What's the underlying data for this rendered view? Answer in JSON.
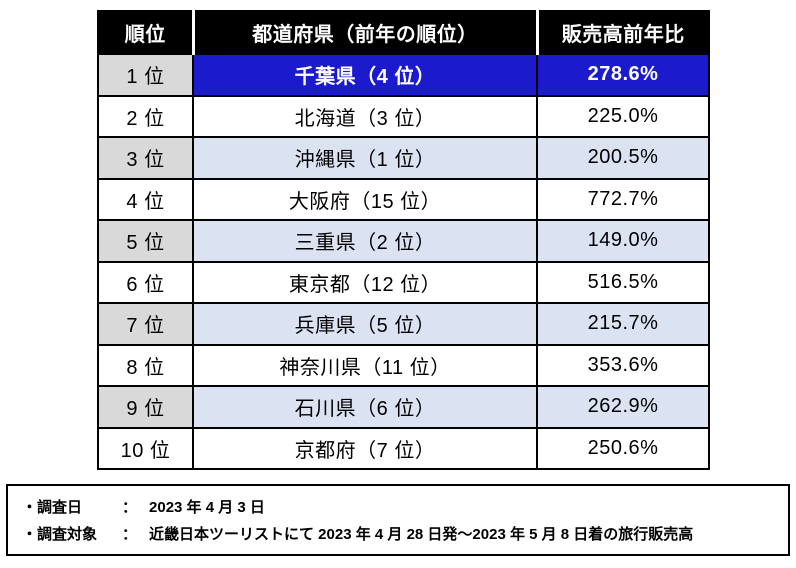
{
  "chart_data": {
    "type": "table",
    "columns": [
      "順位",
      "都道府県（前年の順位）",
      "販売高前年比"
    ],
    "rows": [
      [
        "1 位",
        "千葉県（4 位）",
        "278.6%"
      ],
      [
        "2 位",
        "北海道（3 位）",
        "225.0%"
      ],
      [
        "3 位",
        "沖縄県（1 位）",
        "200.5%"
      ],
      [
        "4 位",
        "大阪府（15 位）",
        "772.7%"
      ],
      [
        "5 位",
        "三重県（2 位）",
        "149.0%"
      ],
      [
        "6 位",
        "東京都（12 位）",
        "516.5%"
      ],
      [
        "7 位",
        "兵庫県（5 位）",
        "215.7%"
      ],
      [
        "8 位",
        "神奈川県（11 位）",
        "353.6%"
      ],
      [
        "9 位",
        "石川県（6 位）",
        "262.9%"
      ],
      [
        "10 位",
        "京都府（7 位）",
        "250.6%"
      ]
    ],
    "highlighted_row_index": 0,
    "layout": {
      "grid": true,
      "legend": "none"
    }
  },
  "notes": [
    {
      "label": "・調査日",
      "separator": "：",
      "value": "2023 年 4 月 3 日"
    },
    {
      "label": "・調査対象",
      "separator": "：",
      "value": "近畿日本ツーリストにて 2023 年 4 月 28 日発～2023 年 5 月 8 日着の旅行販売高"
    }
  ],
  "colors": {
    "header_bg": "#000000",
    "header_text": "#ffffff",
    "highlight_bg": "#1c1acd",
    "highlight_text": "#ffffff",
    "shaded_row_bg": "#dbe3f3",
    "rank_shaded_bg": "#d9d9d9",
    "border": "#000000"
  }
}
